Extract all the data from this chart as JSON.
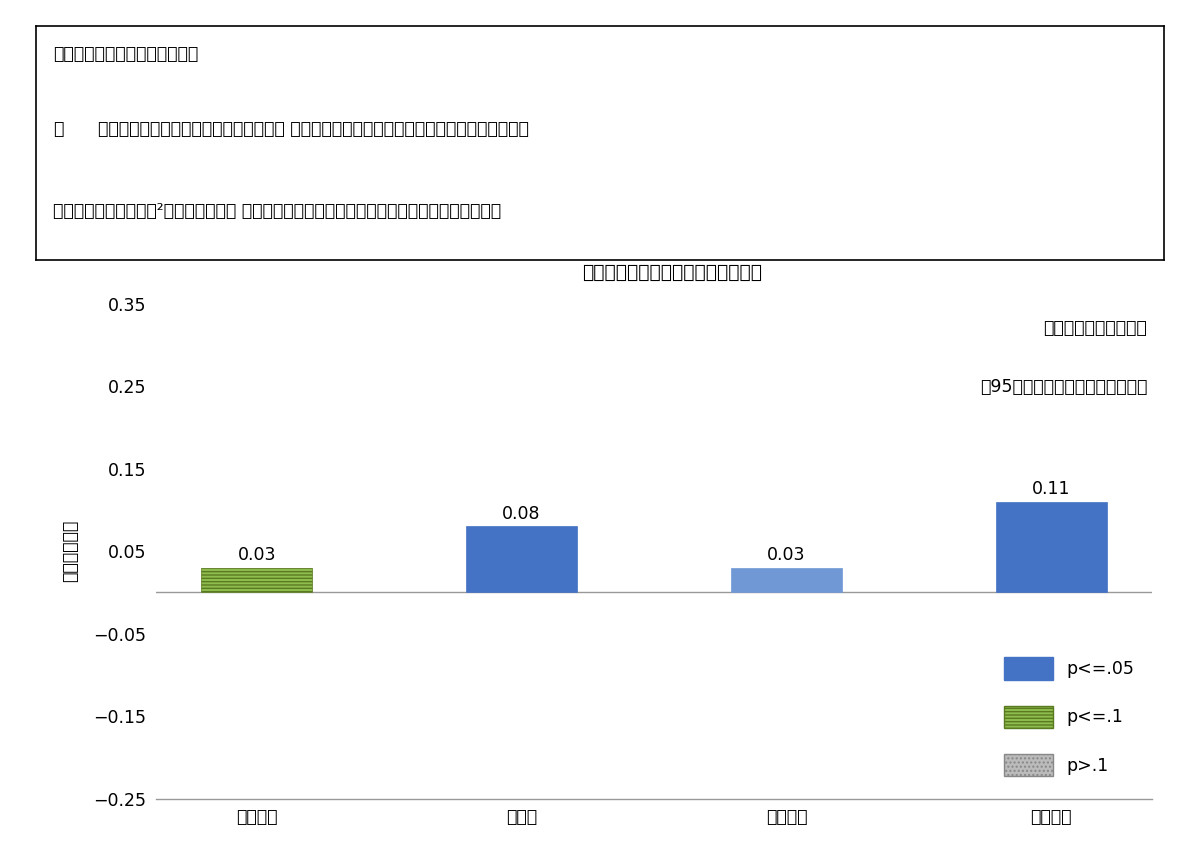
{
  "title": "図表１　定額給付金の消費増加効果",
  "categories": [
    "受給前月",
    "受給月",
    "１か月後",
    "２か月後"
  ],
  "values": [
    0.03,
    0.08,
    0.03,
    0.11
  ],
  "bar_styles": [
    "hlines",
    "solid",
    "solid_light",
    "solid"
  ],
  "blue_color": "#4472c4",
  "blue_light_color": "#7098d4",
  "green_color": "#8fbc4f",
  "ylabel": "消費増加効果",
  "ylim": [
    -0.25,
    0.35
  ],
  "yticks": [
    -0.25,
    -0.15,
    -0.05,
    0.05,
    0.15,
    0.25,
    0.35
  ],
  "annotation_text1": "（累積効果　２５％）",
  "annotation_text2": "（95％信頼区間　１４～３６％）",
  "legend_labels": [
    "p<=.05",
    "p<=.1",
    "p>.1"
  ],
  "textbox_line1": "（消費支出を増加させた効果）",
  "textbox_line2a": "・",
  "textbox_line2b": "定額給付金によって，受給月に受給額の ８％に相当する消費増加効果がみられた。他の月の",
  "textbox_line3": "　　分も合わせた累積²では，受給額の ２５％に相当する消費増加効果がみられた（図表１）。",
  "bg_color": "#ffffff"
}
